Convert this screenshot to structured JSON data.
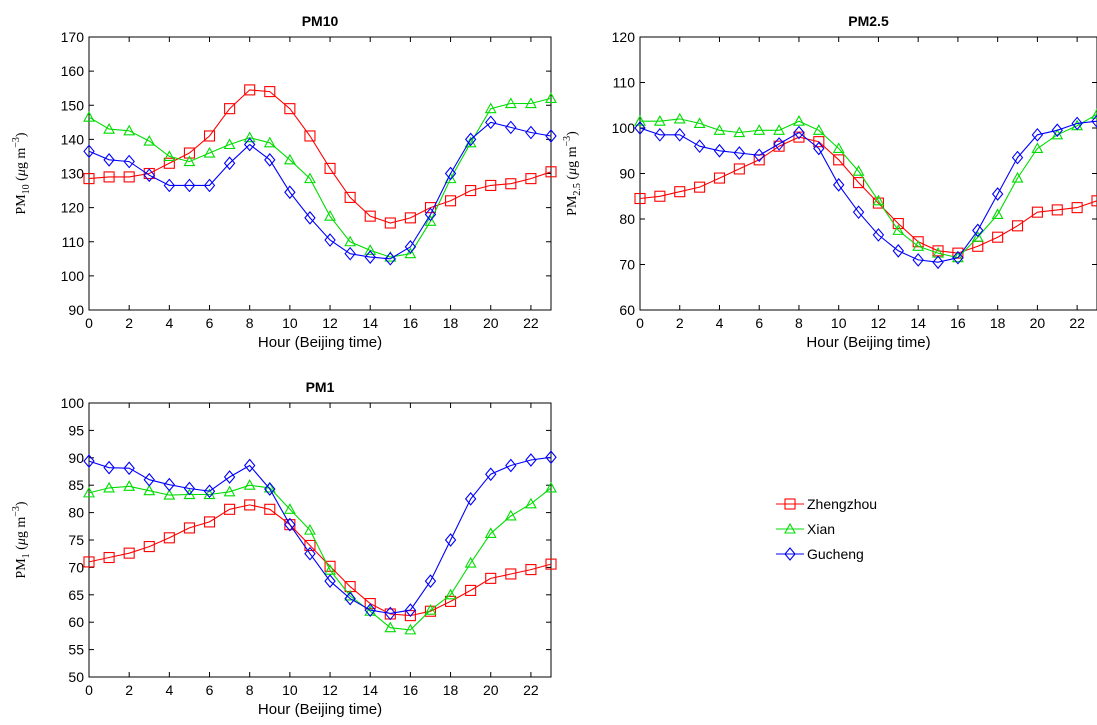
{
  "chart_data": [
    {
      "type": "line",
      "title": "PM10",
      "xlabel": "Hour (Beijing time)",
      "ylabel_parts": {
        "base": "PM",
        "sub": "10",
        "unit_pre": " (",
        "mu": "μ",
        "unit_mid": "g m",
        "sup": "−3",
        "unit_post": ")"
      },
      "xlim": [
        0,
        23
      ],
      "ylim": [
        90,
        170
      ],
      "xticks": [
        0,
        2,
        4,
        6,
        8,
        10,
        12,
        14,
        16,
        18,
        20,
        22
      ],
      "yticks": [
        90,
        100,
        110,
        120,
        130,
        140,
        150,
        160,
        170
      ],
      "x": [
        0,
        1,
        2,
        3,
        4,
        5,
        6,
        7,
        8,
        9,
        10,
        11,
        12,
        13,
        14,
        15,
        16,
        17,
        18,
        19,
        20,
        21,
        22,
        23
      ],
      "series": [
        {
          "name": "Zhengzhou",
          "values": [
            128.5,
            129,
            129,
            130,
            133,
            136,
            141,
            149,
            154.5,
            154,
            149,
            141,
            131.5,
            123,
            117.5,
            115.5,
            117,
            120,
            122,
            125,
            126.5,
            127,
            128.5,
            130.5
          ]
        },
        {
          "name": "Xian",
          "values": [
            146.5,
            143,
            142.5,
            139.5,
            135,
            133.5,
            136,
            138.5,
            140.5,
            139,
            134,
            128.5,
            117.5,
            110,
            107.5,
            105.5,
            106.5,
            116,
            128.5,
            139,
            149,
            150.5,
            150.5,
            152
          ]
        },
        {
          "name": "Gucheng",
          "values": [
            136.5,
            134,
            133.5,
            129.5,
            126.5,
            126.5,
            126.5,
            133,
            138.5,
            134,
            124.5,
            117,
            110.5,
            106.5,
            105.5,
            105,
            108.5,
            118,
            130,
            140,
            145,
            143.5,
            142,
            141
          ]
        }
      ]
    },
    {
      "type": "line",
      "title": "PM2.5",
      "xlabel": "Hour (Beijing time)",
      "ylabel_parts": {
        "base": "PM",
        "sub": "2.5",
        "unit_pre": " (",
        "mu": "μ",
        "unit_mid": "g m",
        "sup": "−3",
        "unit_post": ")"
      },
      "xlim": [
        0,
        23
      ],
      "ylim": [
        60,
        120
      ],
      "xticks": [
        0,
        2,
        4,
        6,
        8,
        10,
        12,
        14,
        16,
        18,
        20,
        22
      ],
      "yticks": [
        60,
        70,
        80,
        90,
        100,
        110,
        120
      ],
      "x": [
        0,
        1,
        2,
        3,
        4,
        5,
        6,
        7,
        8,
        9,
        10,
        11,
        12,
        13,
        14,
        15,
        16,
        17,
        18,
        19,
        20,
        21,
        22,
        23
      ],
      "series": [
        {
          "name": "Zhengzhou",
          "values": [
            84.5,
            85,
            86,
            87,
            89,
            91,
            93,
            96,
            98,
            97,
            93,
            88,
            83.5,
            79,
            75,
            73,
            72.5,
            74,
            76,
            78.5,
            81.5,
            82,
            82.5,
            84
          ]
        },
        {
          "name": "Xian",
          "values": [
            101.5,
            101.5,
            102,
            101,
            99.5,
            99,
            99.5,
            99.5,
            101.5,
            99.5,
            95.5,
            90.5,
            84,
            77.5,
            74,
            72.5,
            71.5,
            76,
            81,
            89,
            95.5,
            98.5,
            100.5,
            103
          ]
        },
        {
          "name": "Gucheng",
          "values": [
            100,
            98.5,
            98.5,
            96,
            95,
            94.5,
            94,
            96.5,
            99,
            95.5,
            87.5,
            81.5,
            76.5,
            73,
            71,
            70.5,
            71.5,
            77.5,
            85.5,
            93.5,
            98.5,
            99.5,
            101,
            101.5
          ]
        }
      ]
    },
    {
      "type": "line",
      "title": "PM1",
      "xlabel": "Hour (Beijing time)",
      "ylabel_parts": {
        "base": "PM",
        "sub": "1",
        "unit_pre": " (",
        "mu": "μ",
        "unit_mid": "g m",
        "sup": "−3",
        "unit_post": ")"
      },
      "xlim": [
        0,
        23
      ],
      "ylim": [
        50,
        100
      ],
      "xticks": [
        0,
        2,
        4,
        6,
        8,
        10,
        12,
        14,
        16,
        18,
        20,
        22
      ],
      "yticks": [
        50,
        55,
        60,
        65,
        70,
        75,
        80,
        85,
        90,
        95,
        100
      ],
      "x": [
        0,
        1,
        2,
        3,
        4,
        5,
        6,
        7,
        8,
        9,
        10,
        11,
        12,
        13,
        14,
        15,
        16,
        17,
        18,
        19,
        20,
        21,
        22,
        23
      ],
      "series": [
        {
          "name": "Zhengzhou",
          "values": [
            71,
            71.8,
            72.6,
            73.8,
            75.4,
            77.2,
            78.3,
            80.6,
            81.4,
            80.6,
            77.8,
            74,
            70.2,
            66.5,
            63.4,
            61.5,
            61.2,
            62,
            63.8,
            65.8,
            68,
            68.8,
            69.6,
            70.6
          ]
        },
        {
          "name": "Xian",
          "values": [
            83.6,
            84.5,
            84.8,
            84,
            83.2,
            83.3,
            83.3,
            83.8,
            85,
            84.5,
            80.6,
            76.8,
            69.5,
            64.8,
            62,
            59,
            58.6,
            62.2,
            65,
            70.8,
            76.2,
            79.4,
            81.6,
            84.5
          ]
        },
        {
          "name": "Gucheng",
          "values": [
            89.4,
            88.2,
            88.1,
            86,
            85.1,
            84.4,
            83.9,
            86.5,
            88.6,
            84.3,
            77.8,
            72.5,
            67.5,
            64.3,
            62.2,
            61.6,
            62.2,
            67.5,
            75,
            82.5,
            87,
            88.6,
            89.6,
            90.1
          ]
        }
      ]
    }
  ],
  "legend": {
    "items": [
      {
        "label": "Zhengzhou",
        "color": "#ff0000",
        "marker": "square"
      },
      {
        "label": "Xian",
        "color": "#00dd00",
        "marker": "triangle"
      },
      {
        "label": "Gucheng",
        "color": "#0000ff",
        "marker": "diamond"
      }
    ]
  },
  "series_colors": {
    "Zhengzhou": "#ff0000",
    "Xian": "#00dd00",
    "Gucheng": "#0000ff"
  },
  "series_markers": {
    "Zhengzhou": "square",
    "Xian": "triangle",
    "Gucheng": "diamond"
  }
}
